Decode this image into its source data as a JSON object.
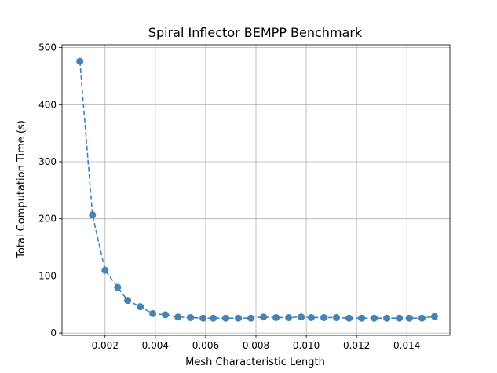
{
  "chart_data": {
    "type": "line",
    "title": "Spiral Inflector BEMPP Benchmark",
    "xlabel": "Mesh Characteristic Length",
    "ylabel": "Total Computation Time (s)",
    "xlim": [
      0.00029,
      0.01571
    ],
    "ylim": [
      -4,
      505
    ],
    "grid": true,
    "xticks": [
      0.002,
      0.004,
      0.006,
      0.008,
      0.01,
      0.012,
      0.014
    ],
    "xtick_labels": [
      "0.002",
      "0.004",
      "0.006",
      "0.008",
      "0.010",
      "0.012",
      "0.014"
    ],
    "yticks": [
      0,
      100,
      200,
      300,
      400,
      500
    ],
    "ytick_labels": [
      "0",
      "100",
      "200",
      "300",
      "400",
      "500"
    ],
    "colors": {
      "series": "#4682b4",
      "grid": "#b0b0b0"
    },
    "series": [
      {
        "line_style": "dashed",
        "marker": "circle",
        "x": [
          0.001,
          0.0015,
          0.002,
          0.0025,
          0.0029,
          0.0034,
          0.0039,
          0.0044,
          0.0049,
          0.0054,
          0.0059,
          0.0063,
          0.0068,
          0.0073,
          0.0078,
          0.0083,
          0.0088,
          0.0093,
          0.0098,
          0.0102,
          0.0107,
          0.0112,
          0.0117,
          0.0122,
          0.0127,
          0.0132,
          0.0137,
          0.0141,
          0.0146,
          0.0151
        ],
        "values": [
          476,
          207,
          110,
          80,
          57,
          46,
          34,
          32,
          28,
          27,
          26,
          26,
          26,
          26,
          26,
          28,
          27,
          27,
          28,
          27,
          27,
          27,
          26,
          26,
          26,
          26,
          26,
          26,
          26,
          29
        ]
      }
    ]
  }
}
